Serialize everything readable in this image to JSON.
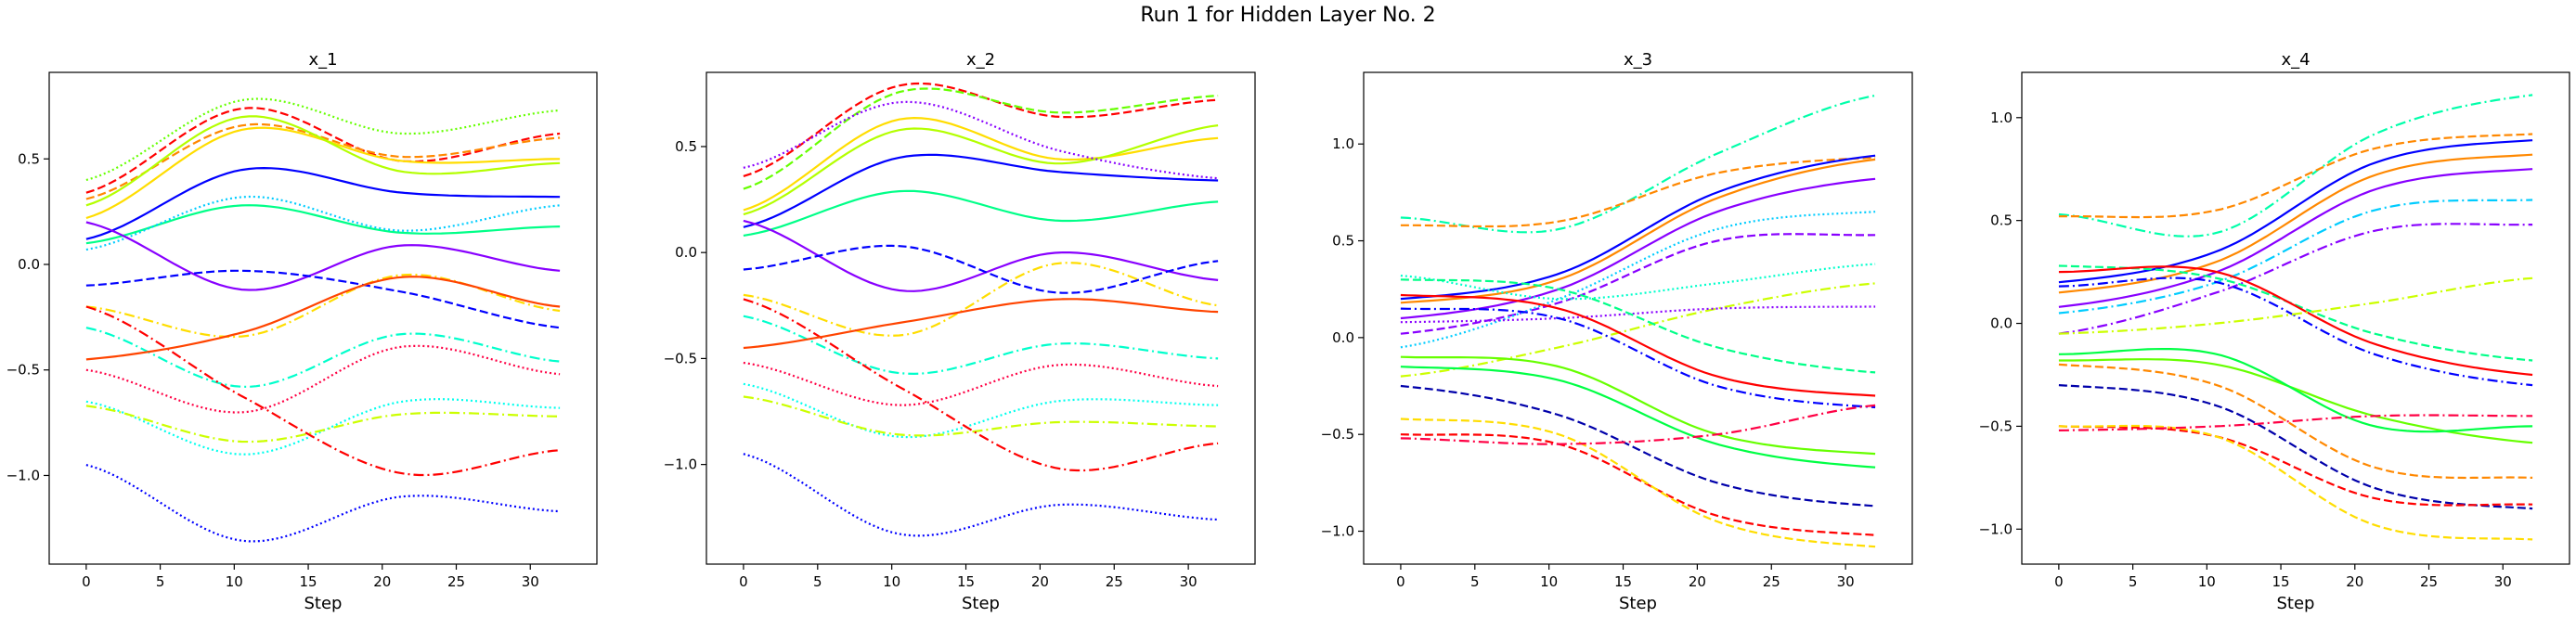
{
  "figure": {
    "title": "Run 1 for Hidden Layer No. 2"
  },
  "chart_data": [
    {
      "type": "line",
      "title": "x_1",
      "xlabel": "Step",
      "ylabel": "",
      "xlim": [
        -2.5,
        34.5
      ],
      "ylim": [
        -1.42,
        0.91
      ],
      "xticks": [
        0,
        5,
        10,
        15,
        20,
        25,
        30
      ],
      "yticks": [
        -1.0,
        -0.5,
        0.0,
        0.5
      ],
      "x_range": [
        0,
        32
      ],
      "grid": false,
      "legend": "none",
      "series": [
        {
          "color": "#ff0000",
          "dash": "dashed",
          "values": [
            0.34,
            0.74,
            0.49,
            0.62
          ]
        },
        {
          "color": "#ff8800",
          "dash": "dashed",
          "values": [
            0.31,
            0.66,
            0.51,
            0.6
          ]
        },
        {
          "color": "#ffdd00",
          "dash": "solid",
          "values": [
            0.22,
            0.64,
            0.49,
            0.5
          ]
        },
        {
          "color": "#b4ff00",
          "dash": "solid",
          "values": [
            0.28,
            0.7,
            0.44,
            0.48
          ]
        },
        {
          "color": "#66ff00",
          "dash": "dotted",
          "values": [
            0.4,
            0.78,
            0.62,
            0.73
          ]
        },
        {
          "color": "#00ff88",
          "dash": "solid",
          "values": [
            0.1,
            0.28,
            0.15,
            0.18
          ]
        },
        {
          "color": "#00ccff",
          "dash": "dotted",
          "values": [
            0.07,
            0.32,
            0.16,
            0.28
          ]
        },
        {
          "color": "#0000ff",
          "dash": "solid",
          "values": [
            0.12,
            0.45,
            0.34,
            0.32
          ]
        },
        {
          "color": "#8800ff",
          "dash": "solid",
          "values": [
            0.2,
            -0.12,
            0.09,
            -0.03
          ]
        },
        {
          "color": "#ffdd00",
          "dash": "dashdot",
          "values": [
            -0.2,
            -0.34,
            -0.05,
            -0.22
          ]
        },
        {
          "color": "#00ffcc",
          "dash": "dashdot",
          "values": [
            -0.3,
            -0.58,
            -0.33,
            -0.46
          ]
        },
        {
          "color": "#ff0044",
          "dash": "dotted",
          "values": [
            -0.5,
            -0.7,
            -0.39,
            -0.52
          ]
        },
        {
          "color": "#00ffee",
          "dash": "dotted",
          "values": [
            -0.65,
            -0.9,
            -0.65,
            -0.68
          ]
        },
        {
          "color": "#ccff00",
          "dash": "dashdot",
          "values": [
            -0.67,
            -0.84,
            -0.71,
            -0.72
          ]
        },
        {
          "color": "#ff0000",
          "dash": "dashdot",
          "values": [
            -0.2,
            -0.63,
            -0.99,
            -0.88
          ]
        },
        {
          "color": "#0000ff",
          "dash": "dotted",
          "values": [
            -0.95,
            -1.31,
            -1.1,
            -1.17
          ]
        },
        {
          "color": "#0000ff",
          "dash": "dashed",
          "values": [
            -0.1,
            -0.03,
            -0.13,
            -0.3
          ]
        },
        {
          "color": "#ff4400",
          "dash": "solid",
          "values": [
            -0.45,
            -0.32,
            -0.06,
            -0.2
          ]
        }
      ]
    },
    {
      "type": "line",
      "title": "x_2",
      "xlabel": "Step",
      "ylabel": "",
      "xlim": [
        -2.5,
        34.5
      ],
      "ylim": [
        -1.47,
        0.85
      ],
      "xticks": [
        0,
        5,
        10,
        15,
        20,
        25,
        30
      ],
      "yticks": [
        -1.0,
        -0.5,
        0.0,
        0.5
      ],
      "x_range": [
        0,
        32
      ],
      "grid": false,
      "legend": "none",
      "series": [
        {
          "color": "#ff0000",
          "dash": "dashed",
          "values": [
            0.36,
            0.79,
            0.64,
            0.72
          ]
        },
        {
          "color": "#66ff00",
          "dash": "dashed",
          "values": [
            0.3,
            0.76,
            0.66,
            0.74
          ]
        },
        {
          "color": "#ffdd00",
          "dash": "solid",
          "values": [
            0.2,
            0.63,
            0.44,
            0.54
          ]
        },
        {
          "color": "#b4ff00",
          "dash": "solid",
          "values": [
            0.18,
            0.58,
            0.42,
            0.6
          ]
        },
        {
          "color": "#8800ff",
          "dash": "dotted",
          "values": [
            0.4,
            0.71,
            0.48,
            0.35
          ]
        },
        {
          "color": "#00ff88",
          "dash": "solid",
          "values": [
            0.08,
            0.29,
            0.15,
            0.24
          ]
        },
        {
          "color": "#0000ff",
          "dash": "solid",
          "values": [
            0.12,
            0.45,
            0.38,
            0.34
          ]
        },
        {
          "color": "#8800ff",
          "dash": "solid",
          "values": [
            0.15,
            -0.18,
            0.0,
            -0.13
          ]
        },
        {
          "color": "#ffdd00",
          "dash": "dashdot",
          "values": [
            -0.2,
            -0.39,
            -0.05,
            -0.25
          ]
        },
        {
          "color": "#00ffcc",
          "dash": "dashdot",
          "values": [
            -0.3,
            -0.57,
            -0.43,
            -0.5
          ]
        },
        {
          "color": "#ff0044",
          "dash": "dotted",
          "values": [
            -0.52,
            -0.72,
            -0.53,
            -0.63
          ]
        },
        {
          "color": "#00ffee",
          "dash": "dotted",
          "values": [
            -0.62,
            -0.87,
            -0.7,
            -0.72
          ]
        },
        {
          "color": "#ccff00",
          "dash": "dashdot",
          "values": [
            -0.68,
            -0.86,
            -0.8,
            -0.82
          ]
        },
        {
          "color": "#ff0000",
          "dash": "dashdot",
          "values": [
            -0.22,
            -0.64,
            -1.02,
            -0.9
          ]
        },
        {
          "color": "#0000ff",
          "dash": "dotted",
          "values": [
            -0.95,
            -1.33,
            -1.19,
            -1.26
          ]
        },
        {
          "color": "#0000ff",
          "dash": "dashed",
          "values": [
            -0.08,
            0.03,
            -0.19,
            -0.04
          ]
        },
        {
          "color": "#ff4400",
          "dash": "solid",
          "values": [
            -0.45,
            -0.33,
            -0.22,
            -0.28
          ]
        }
      ]
    },
    {
      "type": "line",
      "title": "x_3",
      "xlabel": "Step",
      "ylabel": "",
      "xlim": [
        -2.5,
        34.5
      ],
      "ylim": [
        -1.17,
        1.37
      ],
      "xticks": [
        0,
        5,
        10,
        15,
        20,
        25,
        30
      ],
      "yticks": [
        -1.0,
        -0.5,
        0.0,
        0.5,
        1.0
      ],
      "x_range": [
        0,
        32
      ],
      "grid": false,
      "legend": "none",
      "series": [
        {
          "color": "#00ffaa",
          "dash": "dashdot",
          "values": [
            0.62,
            0.56,
            0.95,
            1.25
          ]
        },
        {
          "color": "#ff8800",
          "dash": "dashed",
          "values": [
            0.58,
            0.6,
            0.85,
            0.93
          ]
        },
        {
          "color": "#0000ff",
          "dash": "solid",
          "values": [
            0.2,
            0.33,
            0.75,
            0.94
          ]
        },
        {
          "color": "#ff8800",
          "dash": "solid",
          "values": [
            0.18,
            0.3,
            0.72,
            0.92
          ]
        },
        {
          "color": "#8800ff",
          "dash": "solid",
          "values": [
            0.1,
            0.25,
            0.65,
            0.82
          ]
        },
        {
          "color": "#8800ff",
          "dash": "dashed",
          "values": [
            0.02,
            0.18,
            0.5,
            0.53
          ]
        },
        {
          "color": "#00ccff",
          "dash": "dotted",
          "values": [
            -0.05,
            0.2,
            0.56,
            0.65
          ]
        },
        {
          "color": "#00ffcc",
          "dash": "dotted",
          "values": [
            0.32,
            0.2,
            0.28,
            0.38
          ]
        },
        {
          "color": "#ccff00",
          "dash": "dashdot",
          "values": [
            -0.2,
            -0.05,
            0.15,
            0.28
          ]
        },
        {
          "color": "#8800ff",
          "dash": "dotted",
          "values": [
            0.08,
            0.1,
            0.15,
            0.16
          ]
        },
        {
          "color": "#00ff88",
          "dash": "dashed",
          "values": [
            0.3,
            0.25,
            -0.05,
            -0.18
          ]
        },
        {
          "color": "#ff0000",
          "dash": "solid",
          "values": [
            0.22,
            0.15,
            -0.2,
            -0.3
          ]
        },
        {
          "color": "#0000ff",
          "dash": "dashdot",
          "values": [
            0.15,
            0.1,
            -0.25,
            -0.36
          ]
        },
        {
          "color": "#66ff00",
          "dash": "solid",
          "values": [
            -0.1,
            -0.15,
            -0.5,
            -0.6
          ]
        },
        {
          "color": "#00ff44",
          "dash": "solid",
          "values": [
            -0.15,
            -0.22,
            -0.55,
            -0.67
          ]
        },
        {
          "color": "#0000aa",
          "dash": "dashed",
          "values": [
            -0.25,
            -0.4,
            -0.75,
            -0.87
          ]
        },
        {
          "color": "#ff0000",
          "dash": "dashed",
          "values": [
            -0.5,
            -0.55,
            -0.92,
            -1.02
          ]
        },
        {
          "color": "#ffdd00",
          "dash": "dashed",
          "values": [
            -0.42,
            -0.5,
            -0.95,
            -1.08
          ]
        },
        {
          "color": "#ff0044",
          "dash": "dashdot",
          "values": [
            -0.52,
            -0.55,
            -0.5,
            -0.35
          ]
        }
      ]
    },
    {
      "type": "line",
      "title": "x_4",
      "xlabel": "Step",
      "ylabel": "",
      "xlim": [
        -2.5,
        34.5
      ],
      "ylim": [
        -1.17,
        1.22
      ],
      "xticks": [
        0,
        5,
        10,
        15,
        20,
        25,
        30
      ],
      "yticks": [
        -1.0,
        -0.5,
        0.0,
        0.5,
        1.0
      ],
      "x_range": [
        0,
        32
      ],
      "grid": false,
      "legend": "none",
      "series": [
        {
          "color": "#00ffaa",
          "dash": "dashdot",
          "values": [
            0.53,
            0.44,
            0.92,
            1.11
          ]
        },
        {
          "color": "#ff8800",
          "dash": "dashed",
          "values": [
            0.52,
            0.55,
            0.85,
            0.92
          ]
        },
        {
          "color": "#0000ff",
          "dash": "solid",
          "values": [
            0.2,
            0.35,
            0.78,
            0.89
          ]
        },
        {
          "color": "#ff8800",
          "dash": "solid",
          "values": [
            0.15,
            0.3,
            0.72,
            0.82
          ]
        },
        {
          "color": "#8800ff",
          "dash": "solid",
          "values": [
            0.08,
            0.25,
            0.65,
            0.75
          ]
        },
        {
          "color": "#00ccff",
          "dash": "dashdot",
          "values": [
            0.05,
            0.2,
            0.55,
            0.6
          ]
        },
        {
          "color": "#8800ff",
          "dash": "dashdot",
          "values": [
            -0.05,
            0.15,
            0.45,
            0.48
          ]
        },
        {
          "color": "#00ff88",
          "dash": "dashed",
          "values": [
            0.28,
            0.22,
            -0.05,
            -0.18
          ]
        },
        {
          "color": "#ff0000",
          "dash": "solid",
          "values": [
            0.25,
            0.25,
            -0.1,
            -0.25
          ]
        },
        {
          "color": "#0000ff",
          "dash": "dashdot",
          "values": [
            0.18,
            0.2,
            -0.15,
            -0.3
          ]
        },
        {
          "color": "#ccff00",
          "dash": "dashdot",
          "values": [
            -0.05,
            0.0,
            0.1,
            0.22
          ]
        },
        {
          "color": "#66ff00",
          "dash": "solid",
          "values": [
            -0.18,
            -0.2,
            -0.45,
            -0.58
          ]
        },
        {
          "color": "#00ff44",
          "dash": "solid",
          "values": [
            -0.15,
            -0.15,
            -0.5,
            -0.5
          ]
        },
        {
          "color": "#0000aa",
          "dash": "dashed",
          "values": [
            -0.3,
            -0.4,
            -0.8,
            -0.9
          ]
        },
        {
          "color": "#ff0000",
          "dash": "dashed",
          "values": [
            -0.5,
            -0.55,
            -0.85,
            -0.88
          ]
        },
        {
          "color": "#ffdd00",
          "dash": "dashed",
          "values": [
            -0.5,
            -0.55,
            -0.98,
            -1.05
          ]
        },
        {
          "color": "#ff0044",
          "dash": "dashdot",
          "values": [
            -0.52,
            -0.5,
            -0.45,
            -0.45
          ]
        },
        {
          "color": "#ff8800",
          "dash": "dashed",
          "values": [
            -0.2,
            -0.3,
            -0.7,
            -0.75
          ]
        }
      ]
    }
  ]
}
